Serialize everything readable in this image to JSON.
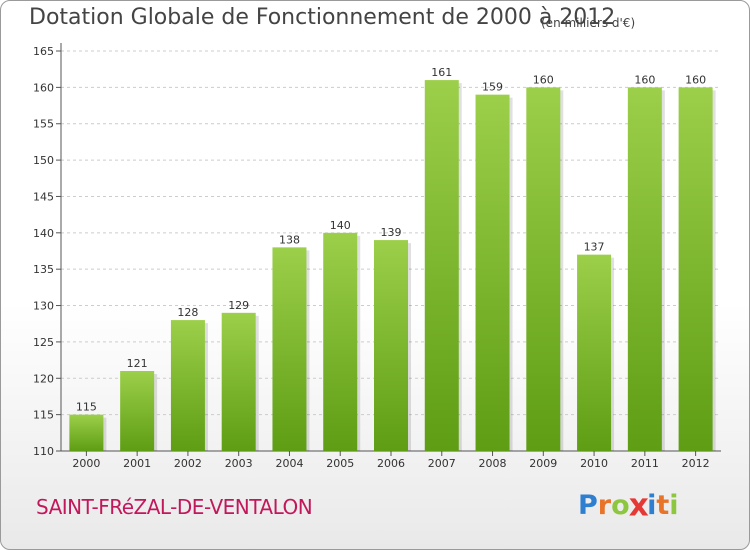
{
  "header": {
    "title": "Dotation Globale de Fonctionnement de 2000 à 2012",
    "subtitle": "(en milliers d'€)"
  },
  "footer": {
    "commune": "SAINT-FRéZAL-DE-VENTALON",
    "logo": {
      "letters": [
        "P",
        "r",
        "o",
        "x",
        "i",
        "t",
        "i"
      ],
      "colors": [
        "#2f7fd0",
        "#e8742a",
        "#8dc63f",
        "#e53935",
        "#2f7fd0",
        "#e8742a",
        "#8dc63f"
      ]
    }
  },
  "colors": {
    "bar_top": "#9ccf4a",
    "bar_bottom": "#5e9d14",
    "grid": "#cccccc",
    "axis_text": "#333333"
  },
  "chart_data": {
    "type": "bar",
    "categories": [
      "2000",
      "2001",
      "2002",
      "2003",
      "2004",
      "2005",
      "2006",
      "2007",
      "2008",
      "2009",
      "2010",
      "2011",
      "2012"
    ],
    "values": [
      115,
      121,
      128,
      129,
      138,
      140,
      139,
      161,
      159,
      160,
      137,
      160,
      160
    ],
    "ylim": [
      110,
      165
    ],
    "yticks": [
      110,
      115,
      120,
      125,
      130,
      135,
      140,
      145,
      150,
      155,
      160,
      165
    ],
    "grid": true,
    "data_labels": true
  }
}
